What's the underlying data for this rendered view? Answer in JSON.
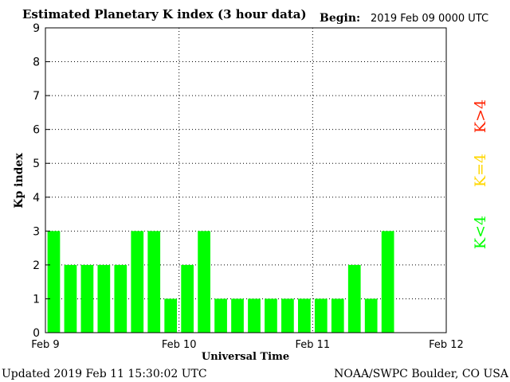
{
  "header": {
    "title": "Estimated Planetary K index (3 hour data)",
    "begin_label": "Begin:",
    "begin_value": "2019 Feb 09 0000 UTC"
  },
  "footer": {
    "updated": "Updated 2019 Feb 11 15:30:02 UTC",
    "source": "NOAA/SWPC Boulder, CO USA"
  },
  "side_legend": {
    "high": "K>4",
    "mid": "K=4",
    "low": "K<4"
  },
  "colors": {
    "low": "#00ff00",
    "mid": "#ffd700",
    "high": "#ff2200",
    "grid": "#000000"
  },
  "chart_data": {
    "type": "bar",
    "ylabel": "Kp index",
    "xlabel": "Universal Time",
    "ylim": [
      0,
      9
    ],
    "yticks": [
      0,
      1,
      2,
      3,
      4,
      5,
      6,
      7,
      8,
      9
    ],
    "x_range_hours": [
      0,
      72
    ],
    "bar_interval_hours": 3,
    "xtick_labels": [
      {
        "hour": 0,
        "label": "Feb 9"
      },
      {
        "hour": 24,
        "label": "Feb 10"
      },
      {
        "hour": 48,
        "label": "Feb 11"
      },
      {
        "hour": 72,
        "label": "Feb 12"
      }
    ],
    "grid": true,
    "values": [
      3,
      2,
      2,
      2,
      2,
      3,
      3,
      1,
      2,
      3,
      1,
      1,
      1,
      1,
      1,
      1,
      1,
      1,
      2,
      1,
      3
    ]
  }
}
